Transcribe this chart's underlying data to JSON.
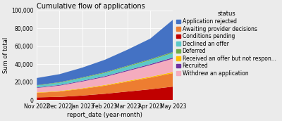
{
  "title": "Cumulative flow of applications",
  "xlabel": "report_date (year-month)",
  "ylabel": "Sum of total",
  "x_labels": [
    "Nov 2022",
    "Dec 2022",
    "Jan 2023",
    "Feb 2023",
    "Mar 2023",
    "Apr 2023",
    "May 2023"
  ],
  "ylim": [
    0,
    100000
  ],
  "yticks": [
    0,
    20000,
    40000,
    60000,
    80000,
    100000
  ],
  "ytick_labels": [
    "0",
    "20,000",
    "40,000",
    "60,000",
    "80,000",
    "100,000"
  ],
  "status_labels": [
    "Application rejected",
    "Awaiting provider decisions",
    "Conditions pending",
    "Declined an offer",
    "Deferred",
    "Received an offer but not respon...",
    "Recruited",
    "Withdrew an application"
  ],
  "stack_colors": {
    "Application rejected": "#4472C4",
    "Awaiting provider decisions": "#ED7D31",
    "Conditions pending": "#C00000",
    "Declined an offer": "#5BC8C8",
    "Deferred": "#70AD47",
    "Received an offer but not respon...": "#FFC000",
    "Recruited": "#7030A0",
    "Withdrew an application": "#F4ACBE"
  },
  "stack_order": [
    "Conditions pending",
    "Awaiting provider decisions",
    "Received an offer but not respon...",
    "Withdrew an application",
    "Recruited",
    "Declined an offer",
    "Deferred",
    "Application rejected"
  ],
  "increments": {
    "Conditions pending": [
      3000,
      3500,
      5000,
      7000,
      9500,
      12000,
      15000
    ],
    "Awaiting provider decisions": [
      5000,
      6000,
      7500,
      9000,
      11000,
      13000,
      15000
    ],
    "Received an offer but not respon...": [
      500,
      600,
      700,
      800,
      900,
      1000,
      1200
    ],
    "Withdrew an application": [
      5000,
      6000,
      7500,
      9000,
      11000,
      13000,
      15000
    ],
    "Recruited": [
      600,
      700,
      800,
      900,
      1000,
      1100,
      1300
    ],
    "Declined an offer": [
      2000,
      2500,
      3000,
      3500,
      4000,
      4500,
      5000
    ],
    "Deferred": [
      500,
      600,
      700,
      800,
      900,
      1000,
      1200
    ],
    "Application rejected": [
      8000,
      9000,
      11000,
      14000,
      18000,
      23000,
      36000
    ]
  },
  "background_color": "#EBEBEB",
  "title_fontsize": 7,
  "axis_fontsize": 6,
  "tick_fontsize": 5.5,
  "legend_fontsize": 5.5
}
